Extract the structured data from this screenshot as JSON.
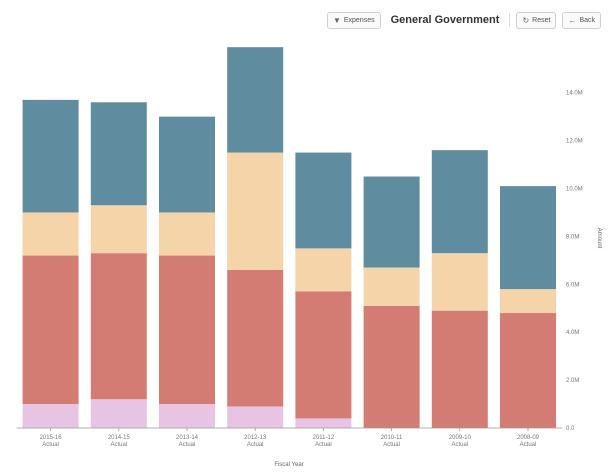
{
  "header": {
    "back_label": "Back",
    "reset_label": "Reset",
    "expenses_label": "Expenses",
    "title": "General Government"
  },
  "chart_data": {
    "type": "bar",
    "stacked": true,
    "title": "General Government",
    "xlabel": "Fiscal Year",
    "ylabel": "Amount",
    "ylim": [
      0,
      16
    ],
    "y_tick_labels": [
      "0.0",
      "2.0M",
      "4.0M",
      "6.0M",
      "8.0M",
      "10.0M",
      "12.0M",
      "14.0M"
    ],
    "y_ticks": [
      0,
      2,
      4,
      6,
      8,
      10,
      12,
      14
    ],
    "categories": [
      "2008-09",
      "2009-10",
      "2010-11",
      "2011-12",
      "2012-13",
      "2013-14",
      "2014-15",
      "2015-16"
    ],
    "category_sublabel": "Actual",
    "series": [
      {
        "color": "#e8c4e4",
        "values": [
          0,
          0,
          0,
          0.4,
          0.9,
          1.0,
          1.2,
          1.0
        ]
      },
      {
        "color": "#d27c73",
        "values": [
          4.8,
          4.9,
          5.1,
          5.3,
          5.7,
          6.2,
          6.1,
          6.2
        ]
      },
      {
        "color": "#f4d4a8",
        "values": [
          1.0,
          2.4,
          1.6,
          1.8,
          4.9,
          1.8,
          2.0,
          1.8
        ]
      },
      {
        "color": "#5f8d9f",
        "values": [
          4.3,
          4.3,
          3.8,
          4.0,
          4.4,
          4.0,
          4.3,
          4.7
        ]
      }
    ],
    "grid": false,
    "legend": "none"
  }
}
